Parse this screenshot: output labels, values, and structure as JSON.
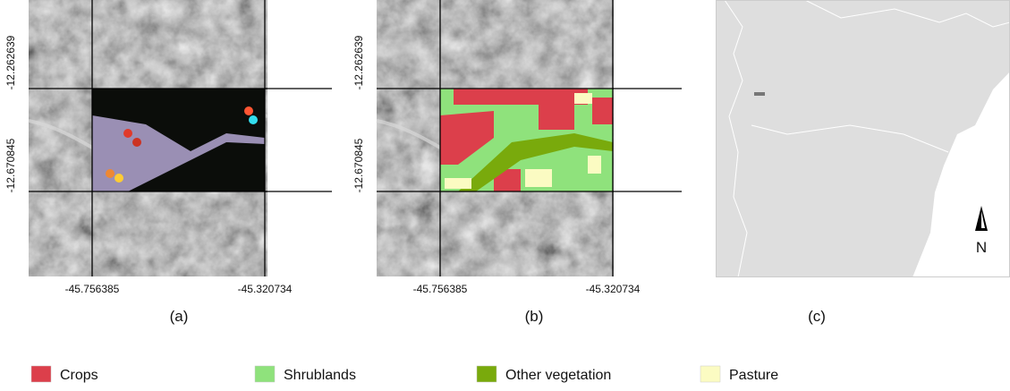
{
  "panels": [
    {
      "caption": "(a)",
      "y_labels": [
        "-12.262639",
        "-12.670845"
      ],
      "x_labels": [
        "-45.756385",
        "-45.320734"
      ]
    },
    {
      "caption": "(b)",
      "y_labels": [
        "-12.262639",
        "-12.670845"
      ],
      "x_labels": [
        "-45.756385",
        "-45.320734"
      ]
    },
    {
      "caption": "(c)",
      "north_label": "N"
    }
  ],
  "legend": [
    {
      "label": "Crops",
      "color": "#dc3f4b"
    },
    {
      "label": "Shrublands",
      "color": "#8fe27c"
    },
    {
      "label": "Other vegetation",
      "color": "#79aa0c"
    },
    {
      "label": "Pasture",
      "color": "#fbfbc2"
    }
  ]
}
